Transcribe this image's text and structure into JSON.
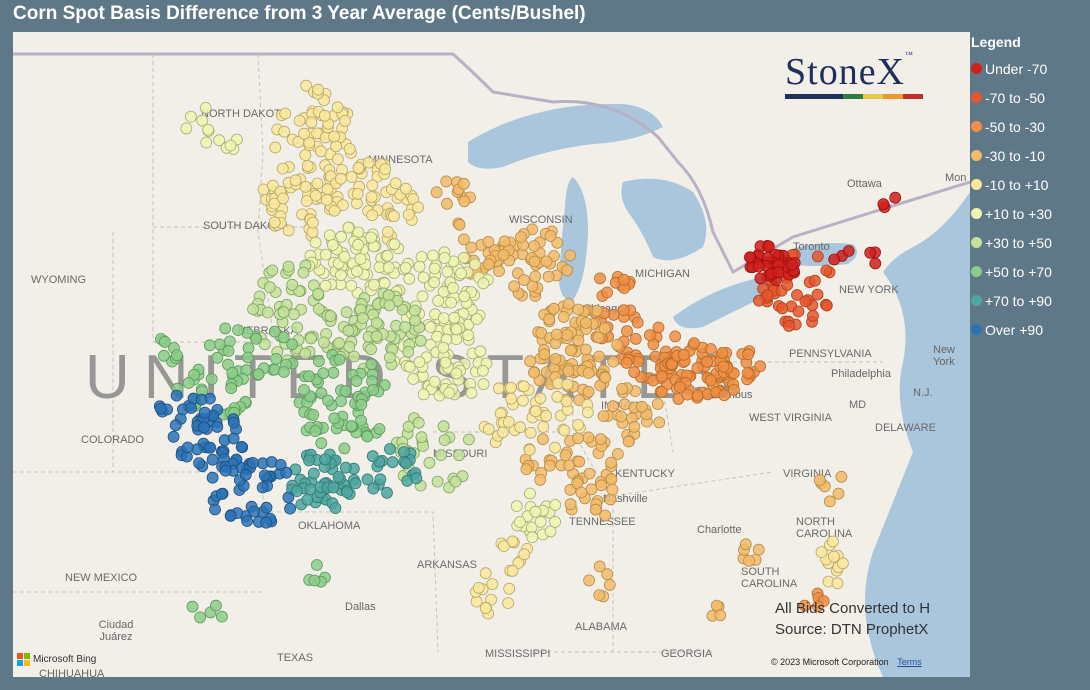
{
  "title": "Corn Spot Basis Difference from 3 Year Average (Cents/Bushel)",
  "legend": {
    "title": "Legend",
    "items": [
      {
        "label": "Under -70",
        "color": "#d0201c"
      },
      {
        "label": "-70 to -50",
        "color": "#e4572e"
      },
      {
        "label": "-50 to -30",
        "color": "#ee8f45"
      },
      {
        "label": "-30 to -10",
        "color": "#f2bb6b"
      },
      {
        "label": "-10 to +10",
        "color": "#f9e79e"
      },
      {
        "label": "+10 to +30",
        "color": "#eff4b0"
      },
      {
        "label": "+30 to +50",
        "color": "#c5e09a"
      },
      {
        "label": "+50 to +70",
        "color": "#8ccc8a"
      },
      {
        "label": "+70 to +90",
        "color": "#4fa6a0"
      },
      {
        "label": "Over +90",
        "color": "#2c73b5"
      }
    ]
  },
  "logo": {
    "text": "StoneX",
    "tm": "™",
    "icon": "stonex-logo"
  },
  "map": {
    "country_label": "UNITED STATES",
    "states": [
      {
        "label": "NORTH DAKOTA"
      },
      {
        "label": "MINNESOTA"
      },
      {
        "label": "SOUTH DAKOTA"
      },
      {
        "label": "WYOMING"
      },
      {
        "label": "NEBRASKA"
      },
      {
        "label": "COLORADO"
      },
      {
        "label": "MISSOURI"
      },
      {
        "label": "KENTUCKY"
      },
      {
        "label": "TENNESSEE"
      },
      {
        "label": "OKLAHOMA"
      },
      {
        "label": "ARKANSAS"
      },
      {
        "label": "NEW MEXICO"
      },
      {
        "label": "TEXAS"
      },
      {
        "label": "MISSISSIPPI"
      },
      {
        "label": "ALABAMA"
      },
      {
        "label": "GEORGIA"
      },
      {
        "label": "SOUTH CAROLINA"
      },
      {
        "label": "NORTH CAROLINA"
      },
      {
        "label": "VIRGINIA"
      },
      {
        "label": "WEST VIRGINIA"
      },
      {
        "label": "PENNSYLVANIA"
      },
      {
        "label": "NEW YORK"
      },
      {
        "label": "MICHIGAN"
      },
      {
        "label": "WISCONSIN"
      },
      {
        "label": "INDIANA"
      },
      {
        "label": "MD"
      },
      {
        "label": "N.J."
      },
      {
        "label": "DELAWARE"
      }
    ],
    "cities": [
      {
        "label": "Chicago"
      },
      {
        "label": "Columbus"
      },
      {
        "label": "Nashville"
      },
      {
        "label": "Charlotte"
      },
      {
        "label": "Dallas"
      },
      {
        "label": "Ciudad Juárez"
      },
      {
        "label": "CHIHUAHUA"
      },
      {
        "label": "Toronto"
      },
      {
        "label": "Ottawa"
      },
      {
        "label": "Philadelphia"
      },
      {
        "label": "New York"
      },
      {
        "label": "Mon"
      }
    ]
  },
  "note": {
    "line1": "All Bids Converted to H",
    "line2": "Source: DTN ProphetX"
  },
  "attribution": {
    "bing": "Microsoft Bing",
    "copyright": "© 2023 Microsoft Corporation",
    "terms": "Terms"
  }
}
